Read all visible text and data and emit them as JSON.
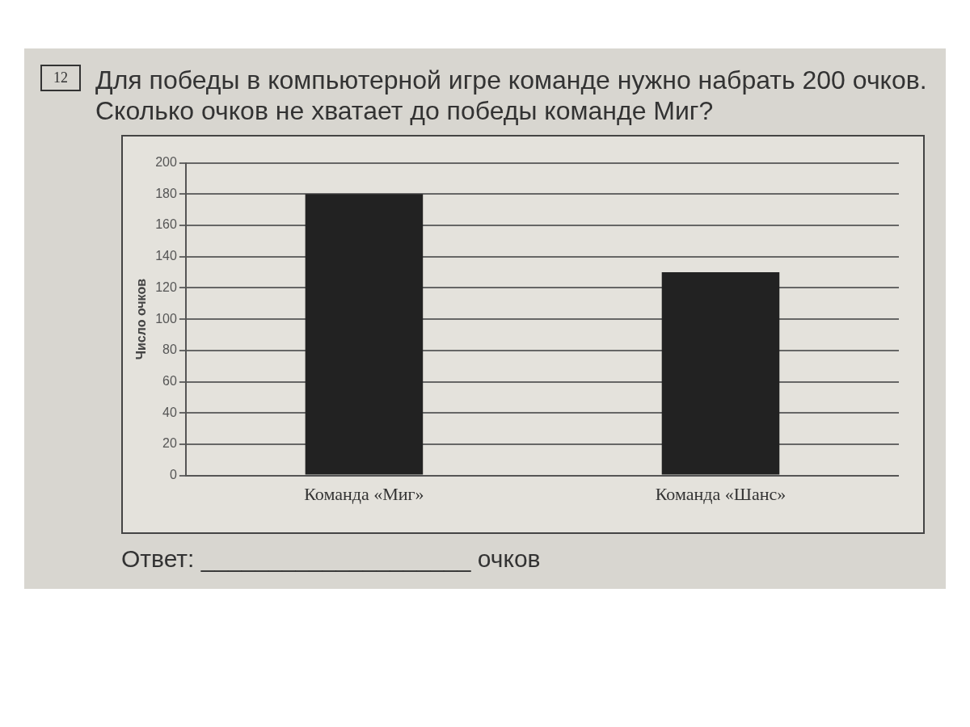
{
  "chart_data": {
    "type": "bar",
    "title": "Для победы в компьютерной игре команде нужно набрать 200 очков. Сколько очков не хватает до победы команде Миг?",
    "ylabel": "Число очков",
    "categories": [
      "Команда «Миг»",
      "Команда «Шанс»"
    ],
    "values": [
      180,
      130
    ],
    "color": "#222222",
    "ylim": [
      0,
      200
    ],
    "yticks": [
      0,
      20,
      40,
      60,
      80,
      100,
      120,
      140,
      160,
      180,
      200
    ],
    "grid": "y",
    "annotations": [
      "12",
      "Ответ: ____________________ очков"
    ]
  }
}
